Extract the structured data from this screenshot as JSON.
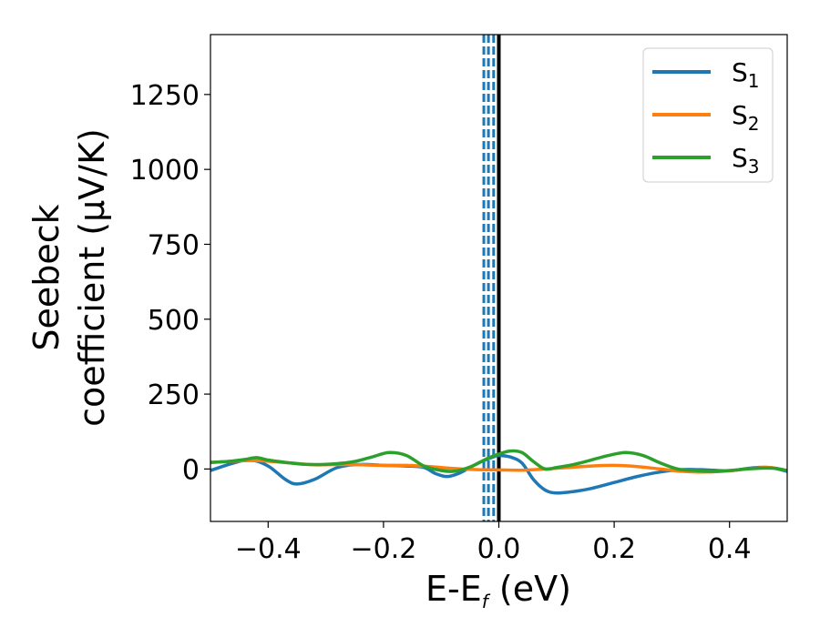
{
  "chart_data": {
    "type": "line",
    "xlabel": {
      "main": "E-E",
      "sub": "f",
      "rest": " (eV)"
    },
    "ylabel": {
      "line1": "Seebeck",
      "line2": "coefficient  (μV/K)"
    },
    "xlim": [
      -0.5,
      0.5
    ],
    "ylim": [
      -175,
      1450
    ],
    "xticks": [
      -0.4,
      -0.2,
      0.0,
      0.2,
      0.4
    ],
    "xtick_labels": [
      "−0.4",
      "−0.2",
      "0.0",
      "0.2",
      "0.4"
    ],
    "yticks": [
      0,
      250,
      500,
      750,
      1000,
      1250
    ],
    "ytick_labels": [
      "0",
      "250",
      "500",
      "750",
      "1000",
      "1250"
    ],
    "grid": false,
    "legend_position": "top-right",
    "vertical_lines": [
      {
        "x": 0.0,
        "style": "solid",
        "color": "#000000"
      },
      {
        "x": -0.026,
        "style": "dashed",
        "color": "#1f77b4"
      },
      {
        "x": -0.018,
        "style": "dashed",
        "color": "#1f77b4"
      },
      {
        "x": -0.009,
        "style": "dashed",
        "color": "#1f77b4"
      }
    ],
    "series": [
      {
        "name": "S",
        "sub": "1",
        "color": "#1f77b4",
        "x": [
          -0.5,
          -0.46,
          -0.43,
          -0.4,
          -0.37,
          -0.35,
          -0.32,
          -0.28,
          -0.24,
          -0.2,
          -0.16,
          -0.13,
          -0.11,
          -0.09,
          -0.07,
          -0.05,
          -0.03,
          -0.01,
          0.0,
          0.02,
          0.04,
          0.06,
          0.08,
          0.1,
          0.13,
          0.16,
          0.2,
          0.24,
          0.28,
          0.32,
          0.36,
          0.4,
          0.44,
          0.47,
          0.5
        ],
        "y": [
          -5,
          20,
          30,
          10,
          -35,
          -50,
          -35,
          5,
          15,
          12,
          10,
          5,
          -15,
          -25,
          -15,
          5,
          25,
          40,
          45,
          40,
          20,
          -35,
          -70,
          -80,
          -75,
          -65,
          -45,
          -25,
          -10,
          -2,
          -3,
          -6,
          4,
          5,
          -8
        ]
      },
      {
        "name": "S",
        "sub": "2",
        "color": "#ff7f0e",
        "x": [
          -0.5,
          -0.46,
          -0.43,
          -0.4,
          -0.36,
          -0.32,
          -0.28,
          -0.24,
          -0.2,
          -0.16,
          -0.12,
          -0.08,
          -0.04,
          0.0,
          0.04,
          0.08,
          0.12,
          0.16,
          0.2,
          0.24,
          0.28,
          0.32,
          0.36,
          0.4,
          0.44,
          0.47,
          0.5
        ],
        "y": [
          22,
          26,
          28,
          26,
          20,
          14,
          15,
          14,
          12,
          12,
          8,
          2,
          -2,
          -3,
          -4,
          0,
          5,
          10,
          12,
          8,
          0,
          -8,
          -10,
          -6,
          2,
          5,
          -5
        ]
      },
      {
        "name": "S",
        "sub": "3",
        "color": "#2ca02c",
        "x": [
          -0.5,
          -0.47,
          -0.44,
          -0.42,
          -0.4,
          -0.37,
          -0.34,
          -0.31,
          -0.28,
          -0.25,
          -0.22,
          -0.19,
          -0.16,
          -0.13,
          -0.1,
          -0.08,
          -0.06,
          -0.04,
          -0.02,
          0.0,
          0.02,
          0.04,
          0.06,
          0.08,
          0.1,
          0.13,
          0.16,
          0.19,
          0.22,
          0.25,
          0.28,
          0.31,
          0.34,
          0.37,
          0.4,
          0.43,
          0.46,
          0.48,
          0.5
        ],
        "y": [
          22,
          25,
          32,
          38,
          30,
          22,
          16,
          15,
          18,
          25,
          40,
          55,
          45,
          10,
          -5,
          -8,
          0,
          15,
          35,
          50,
          60,
          55,
          25,
          0,
          5,
          15,
          30,
          45,
          55,
          45,
          20,
          0,
          -5,
          -8,
          -5,
          0,
          3,
          2,
          -5
        ]
      }
    ]
  }
}
